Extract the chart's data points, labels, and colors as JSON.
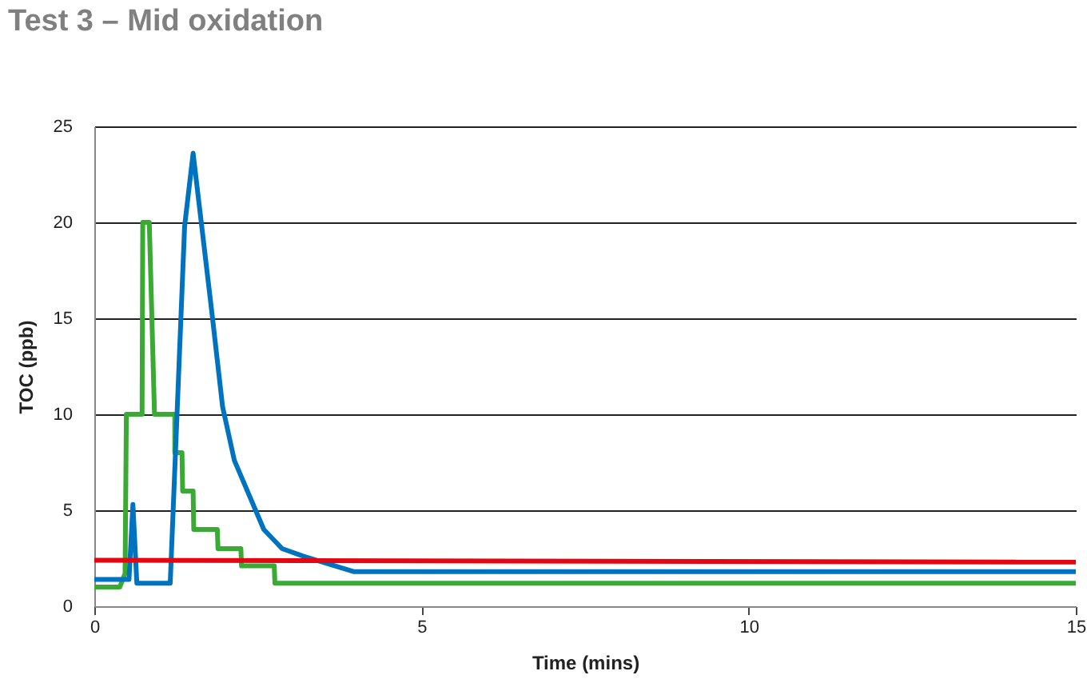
{
  "chart_data": {
    "type": "line",
    "title": "Test 3 – Mid oxidation",
    "xlabel": "Time (mins)",
    "ylabel": "TOC (ppb)",
    "xlim": [
      0,
      15
    ],
    "xticks": [
      0,
      5,
      10,
      15
    ],
    "ylim": [
      0,
      25
    ],
    "yticks": [
      0,
      5,
      10,
      15,
      20,
      25
    ],
    "grid": "y",
    "line_style": "solid",
    "series": [
      {
        "color": "#3aaa35",
        "x": [
          0,
          0.39,
          0.47,
          0.49,
          0.73,
          0.74,
          0.84,
          0.92,
          1.23,
          1.23,
          1.34,
          1.35,
          1.51,
          1.52,
          1.88,
          1.89,
          2.24,
          2.25,
          2.75,
          2.76,
          15
        ],
        "values": [
          1,
          1,
          1.7,
          10,
          10,
          20,
          20,
          10,
          10,
          8,
          8,
          6,
          6,
          4,
          4,
          3,
          3,
          2.1,
          2.1,
          1.2,
          1.2
        ]
      },
      {
        "color": "#0073c0",
        "x": [
          0,
          0.53,
          0.59,
          0.65,
          1.16,
          1.38,
          1.51,
          1.8,
          1.96,
          2.14,
          2.59,
          2.87,
          3.2,
          3.97,
          15
        ],
        "values": [
          1.4,
          1.4,
          5.3,
          1.2,
          1.2,
          19.8,
          23.6,
          15.2,
          10.4,
          7.6,
          4,
          3,
          2.6,
          1.8,
          1.8
        ]
      },
      {
        "color": "#e30613",
        "x": [
          0,
          15
        ],
        "values": [
          2.4,
          2.3
        ]
      }
    ]
  }
}
